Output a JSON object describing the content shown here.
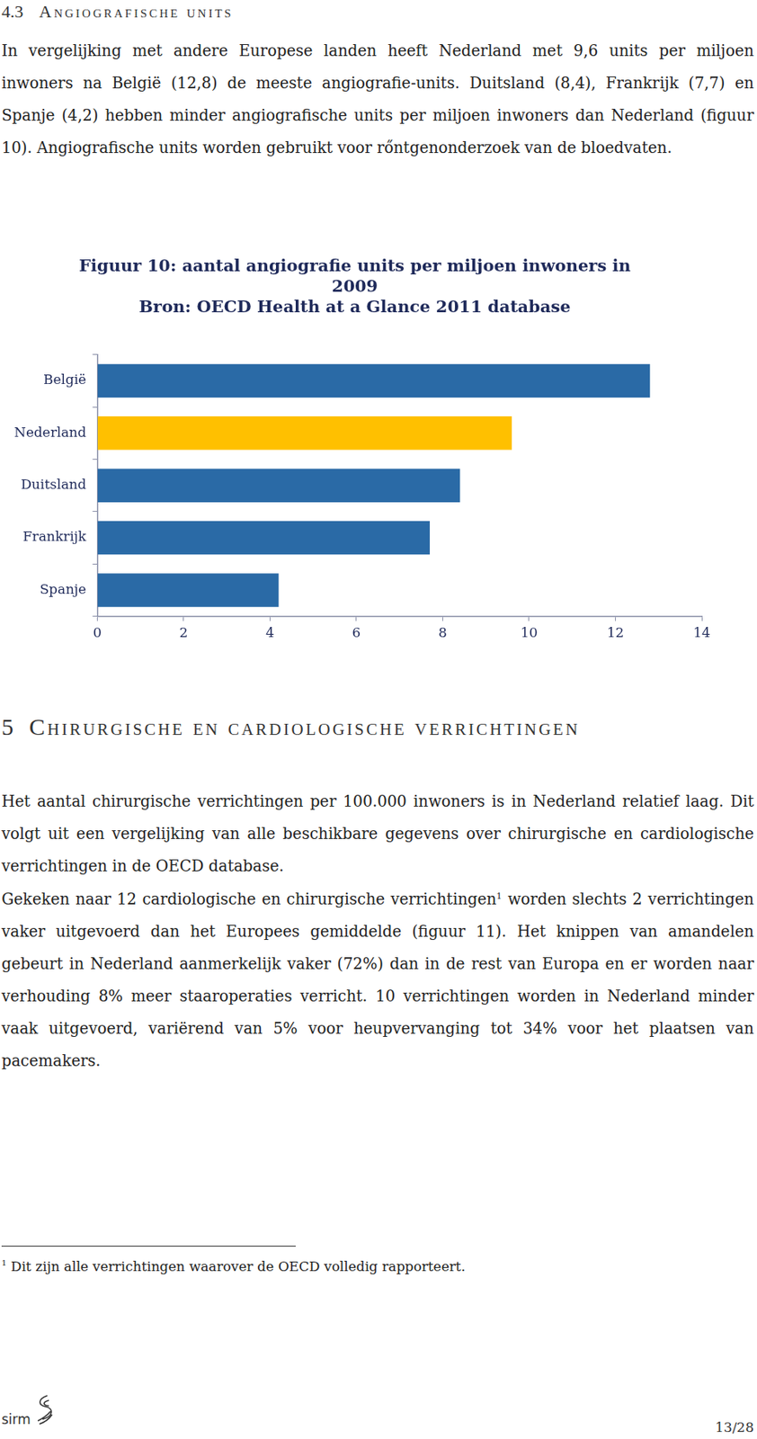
{
  "section_43": {
    "number": "4.3",
    "title": "Angiografische units"
  },
  "paragraph_1": "In vergelijking met andere Europese landen heeft Nederland met 9,6 units per miljoen inwoners na België (12,8) de meeste angiografie-units. Duitsland (8,4), Frankrijk (7,7) en Spanje (4,2) hebben minder angiografische units per miljoen inwoners dan Nederland (figuur 10). Angiografische units worden gebruikt voor rőntgenonderzoek van de bloedvaten.",
  "chart_data": {
    "type": "bar",
    "orientation": "horizontal",
    "title": [
      "Figuur 10: aantal angiografie units per miljoen inwoners in",
      "2009",
      "Bron: OECD Health at a Glance 2011 database"
    ],
    "categories": [
      "België",
      "Nederland",
      "Duitsland",
      "Frankrijk",
      "Spanje"
    ],
    "values": [
      12.8,
      9.6,
      8.4,
      7.7,
      4.2
    ],
    "colors": [
      "#2a6aa6",
      "#ffc000",
      "#2a6aa6",
      "#2a6aa6",
      "#2a6aa6"
    ],
    "xlim": [
      0,
      14
    ],
    "xticks": [
      0,
      2,
      4,
      6,
      8,
      10,
      12,
      14
    ],
    "grid": false
  },
  "section_5": {
    "number": "5",
    "title": "Chirurgische en cardiologische verrichtingen"
  },
  "paragraph_2": "Het aantal chirurgische verrichtingen per 100.000 inwoners is in Nederland relatief laag. Dit volgt uit een vergelijking van alle beschikbare gegevens over chirurgische en cardiologische verrichtingen in de OECD database.",
  "paragraph_3": {
    "before": "Gekeken naar 12 cardiologische en chirurgische verrichtingen",
    "footnote_ref": "1",
    "after": " worden slechts 2 verrichtingen vaker uitgevoerd dan het Europees gemiddelde (figuur 11). Het knippen van amandelen gebeurt in Nederland aanmerkelijk vaker (72%) dan in de rest van Europa en er worden naar verhouding 8% meer staaroperaties verricht. 10 verrichtingen worden in Nederland minder vaak uitgevoerd, variërend van 5% voor heupvervanging tot 34% voor het plaatsen van pacemakers."
  },
  "footnote": {
    "mark": "1",
    "text": "Dit zijn alle verrichtingen waarover de OECD volledig rapporteert."
  },
  "footer": {
    "logo": "sirm",
    "page": "13/28"
  }
}
